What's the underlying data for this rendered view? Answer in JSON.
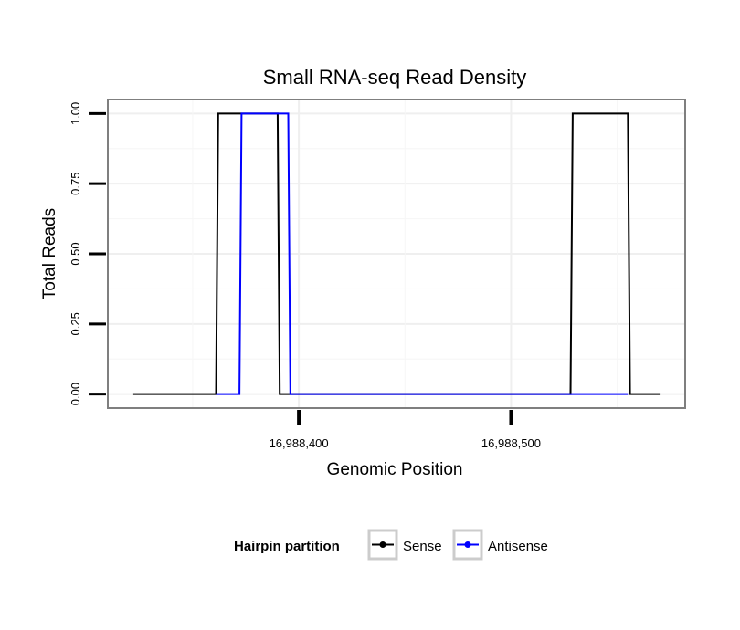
{
  "chart_data": {
    "type": "line",
    "title": "Small RNA-seq Read Density",
    "xlabel": "Genomic Position",
    "ylabel": "Total Reads",
    "xlim": [
      16988310,
      16988582
    ],
    "ylim": [
      -0.05,
      1.05
    ],
    "x_ticks": [
      16988400,
      16988500
    ],
    "x_tick_labels": [
      "16,988,400",
      "16,988,500"
    ],
    "y_ticks": [
      0,
      0.25,
      0.5,
      0.75,
      1
    ],
    "y_tick_labels": [
      "0.00",
      "0.25",
      "0.50",
      "0.75",
      "1.00"
    ],
    "grid": true,
    "legend": {
      "title": "Hairpin partition",
      "position": "bottom"
    },
    "series": [
      {
        "name": "Sense",
        "color": "#000000",
        "x": [
          16988322,
          16988361,
          16988362,
          16988390,
          16988391,
          16988528,
          16988529,
          16988555,
          16988556,
          16988570
        ],
        "y": [
          0,
          0,
          1,
          1,
          0,
          0,
          1,
          1,
          0,
          0
        ]
      },
      {
        "name": "Antisense",
        "color": "#0000ff",
        "x": [
          16988361,
          16988372,
          16988373,
          16988395,
          16988396,
          16988528,
          16988555
        ],
        "y": [
          0,
          0,
          1,
          1,
          0,
          0,
          0
        ]
      }
    ]
  }
}
